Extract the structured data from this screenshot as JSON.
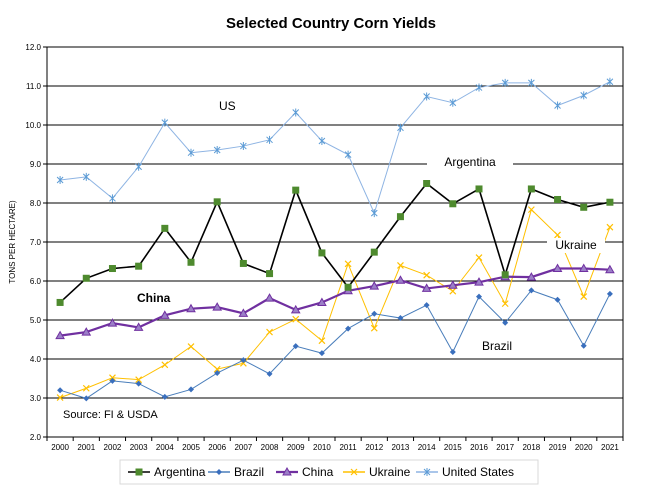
{
  "chart_data": {
    "type": "line",
    "title": "Selected Country Corn Yields",
    "ylabel": "TONS PER HECTARE)",
    "xlabel": "",
    "ylim": [
      2.0,
      12.0
    ],
    "y_ticks": [
      "2.0",
      "3.0",
      "4.0",
      "5.0",
      "6.0",
      "7.0",
      "8.0",
      "9.0",
      "10.0",
      "11.0",
      "12.0"
    ],
    "grid": "horizontal",
    "legend_position": "bottom",
    "x": [
      "2000",
      "2001",
      "2002",
      "2003",
      "2004",
      "2005",
      "2006",
      "2007",
      "2008",
      "2009",
      "2010",
      "2011",
      "2012",
      "2013",
      "2014",
      "2015",
      "2016",
      "2017",
      "2018",
      "2019",
      "2020",
      "2021"
    ],
    "series": [
      {
        "name": "Argentina",
        "color": "#000000",
        "marker_color": "#4e8a2e",
        "marker": "square",
        "values": [
          5.45,
          6.07,
          6.32,
          6.38,
          7.35,
          6.48,
          8.03,
          6.45,
          6.19,
          8.33,
          6.72,
          5.84,
          6.74,
          7.65,
          8.5,
          7.98,
          8.36,
          6.16,
          8.36,
          8.09,
          7.89,
          8.02
        ]
      },
      {
        "name": "Brazil",
        "color": "#4a7ebb",
        "marker_color": "#3a6fbd",
        "marker": "diamond",
        "values": [
          3.2,
          2.99,
          3.44,
          3.37,
          3.03,
          3.22,
          3.64,
          3.97,
          3.62,
          4.33,
          4.15,
          4.78,
          5.16,
          5.05,
          5.38,
          4.18,
          5.6,
          4.93,
          5.76,
          5.52,
          4.34,
          5.67
        ]
      },
      {
        "name": "China",
        "color": "#7030a0",
        "marker_color": "#9b7fc7",
        "marker": "triangle",
        "values": [
          4.6,
          4.69,
          4.92,
          4.81,
          5.12,
          5.29,
          5.33,
          5.17,
          5.56,
          5.26,
          5.45,
          5.75,
          5.87,
          6.02,
          5.81,
          5.89,
          5.97,
          6.11,
          6.1,
          6.32,
          6.32,
          6.29
        ]
      },
      {
        "name": "Ukraine",
        "color": "#ffc000",
        "marker_color": "#ffc000",
        "marker": "x",
        "values": [
          3.01,
          3.25,
          3.52,
          3.47,
          3.85,
          4.32,
          3.74,
          3.89,
          4.69,
          5.02,
          4.47,
          6.44,
          4.79,
          6.4,
          6.15,
          5.74,
          6.6,
          5.42,
          7.83,
          7.18,
          5.6,
          7.38
        ]
      },
      {
        "name": "United States",
        "color": "#8eb4e3",
        "marker_color": "#5b9bd5",
        "marker": "star",
        "values": [
          8.59,
          8.67,
          8.12,
          8.93,
          10.06,
          9.29,
          9.36,
          9.46,
          9.62,
          10.32,
          9.59,
          9.24,
          7.74,
          9.93,
          10.73,
          10.57,
          10.96,
          11.08,
          11.08,
          10.5,
          10.76,
          11.11
        ]
      }
    ],
    "annotations": [
      {
        "text": "US",
        "bold": false
      },
      {
        "text": "Argentina",
        "bold": false
      },
      {
        "text": "Ukraine",
        "bold": false
      },
      {
        "text": "China",
        "bold": true
      },
      {
        "text": "Brazil",
        "bold": false
      },
      {
        "text": "Source: FI & USDA",
        "bold": false
      }
    ]
  }
}
